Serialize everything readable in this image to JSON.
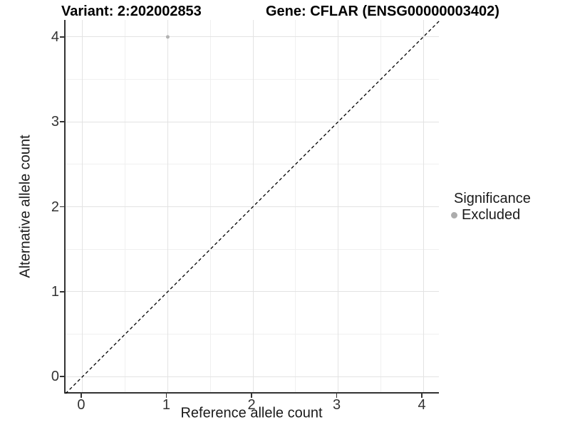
{
  "chart_data": {
    "type": "scatter",
    "title_parts": {
      "variant": "Variant: 2:202002853",
      "gene": "Gene: CFLAR (ENSG00000003402)"
    },
    "xlabel": "Reference allele count",
    "ylabel": "Alternative allele count",
    "xlim": [
      -0.2,
      4.2
    ],
    "ylim": [
      -0.2,
      4.2
    ],
    "x_ticks": [
      0,
      1,
      2,
      3,
      4
    ],
    "y_ticks": [
      0,
      1,
      2,
      3,
      4
    ],
    "x_minor_ticks": [
      0.5,
      1.5,
      2.5,
      3.5
    ],
    "y_minor_ticks": [
      0.5,
      1.5,
      2.5,
      3.5
    ],
    "grid": "on",
    "series": [
      {
        "name": "Excluded",
        "color": "#b2b2b2",
        "points": [
          {
            "x": 1,
            "y": 4
          }
        ]
      }
    ],
    "identity_line": {
      "style": "dashed",
      "color": "#000000",
      "from": [
        -0.2,
        -0.2
      ],
      "to": [
        4.2,
        4.2
      ]
    },
    "legend": {
      "position": "right",
      "title": "Significance",
      "items": [
        {
          "label": "Excluded",
          "color": "#acacac"
        }
      ]
    }
  },
  "colors": {
    "background": "#ffffff",
    "grid_major": "#e3e3e3",
    "grid_minor": "#f0f0f0",
    "axis_line": "#333333",
    "tick_text": "#333333",
    "title_text": "#000000"
  }
}
